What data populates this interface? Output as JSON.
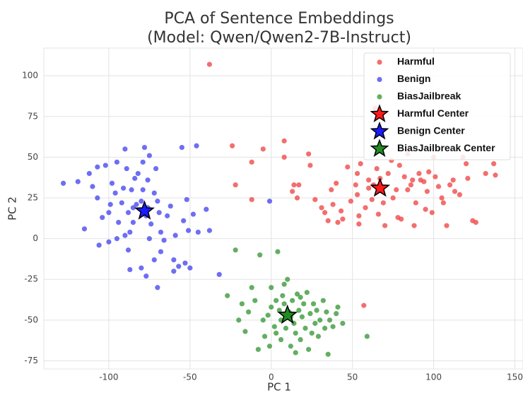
{
  "chart_data": {
    "type": "scatter",
    "title": [
      "PCA of Sentence Embeddings",
      "(Model: Qwen/Qwen2-7B-Instruct)"
    ],
    "xlabel": "PC 1",
    "ylabel": "PC 2",
    "xlim": [
      -140,
      155
    ],
    "ylim": [
      -80,
      117
    ],
    "xticks": [
      -100,
      -50,
      0,
      50,
      100,
      150
    ],
    "yticks": [
      -75,
      -50,
      -25,
      0,
      25,
      50,
      75,
      100
    ],
    "grid": true,
    "legend": "upper right",
    "series": [
      {
        "name": "Harmful",
        "color": "#f04a4a",
        "marker": "circle",
        "x": [
          -38,
          -24,
          -22,
          -12,
          -12,
          -5,
          8,
          8,
          13,
          14,
          16,
          17,
          23,
          24,
          27,
          31,
          33,
          35,
          38,
          37,
          40,
          41,
          43,
          44,
          47,
          49,
          52,
          53,
          53,
          54,
          54,
          55,
          58,
          60,
          60,
          62,
          64,
          63,
          65,
          66,
          67,
          69,
          70,
          72,
          74,
          75,
          77,
          78,
          80,
          79,
          82,
          84,
          84,
          86,
          87,
          88,
          89,
          91,
          92,
          94,
          95,
          96,
          97,
          99,
          100,
          101,
          103,
          105,
          106,
          108,
          110,
          112,
          113,
          116,
          118,
          120,
          121,
          124,
          126,
          132,
          137,
          138,
          57
        ],
        "y": [
          107,
          57,
          33,
          47,
          24,
          55,
          50,
          60,
          29,
          33,
          25,
          33,
          52,
          45,
          24,
          19,
          16,
          11,
          21,
          30,
          34,
          10,
          17,
          12,
          44,
          23,
          33,
          27,
          40,
          14,
          9,
          46,
          19,
          36,
          31,
          24,
          80,
          33,
          43,
          15,
          37,
          22,
          8,
          40,
          48,
          25,
          30,
          13,
          12,
          45,
          38,
          30,
          52,
          33,
          36,
          8,
          22,
          40,
          36,
          35,
          18,
          29,
          41,
          16,
          50,
          38,
          32,
          25,
          22,
          8,
          33,
          36,
          29,
          27,
          50,
          46,
          37,
          11,
          10,
          40,
          46,
          39,
          -41
        ]
      },
      {
        "name": "Benign",
        "color": "#4a4af0",
        "marker": "circle",
        "x": [
          -128,
          -119,
          -112,
          -110,
          -107,
          -107,
          -104,
          -100,
          -99,
          -98,
          -96,
          -95,
          -94,
          -92,
          -91,
          -90,
          -89,
          -88,
          -87,
          -86,
          -85,
          -85,
          -84,
          -83,
          -82,
          -80,
          -79,
          -79,
          -78,
          -77,
          -76,
          -76,
          -75,
          -74,
          -72,
          -71,
          -70,
          -69,
          -68,
          -68,
          -66,
          -64,
          -62,
          -60,
          -59,
          -57,
          -55,
          -54,
          -52,
          -51,
          -50,
          -48,
          -46,
          -45,
          -40,
          -38,
          -32,
          -115,
          -106,
          -88,
          -87,
          -80,
          -77,
          -72,
          -70,
          -102,
          -95,
          -90,
          -1,
          -75,
          -60,
          -53,
          -100
        ],
        "y": [
          34,
          35,
          40,
          32,
          44,
          25,
          13,
          16,
          21,
          34,
          28,
          47,
          10,
          22,
          31,
          55,
          43,
          16,
          4,
          30,
          19,
          10,
          37,
          21,
          40,
          23,
          47,
          30,
          56,
          14,
          36,
          19,
          51,
          9,
          28,
          43,
          23,
          16,
          4,
          -8,
          -1,
          14,
          20,
          -13,
          2,
          -17,
          56,
          11,
          24,
          5,
          -18,
          15,
          57,
          4,
          18,
          5,
          -22,
          6,
          -4,
          -7,
          -19,
          -18,
          -23,
          -13,
          -30,
          45,
          0,
          2,
          23,
          0,
          -20,
          -15,
          -2
        ]
      },
      {
        "name": "BiasJailbreak",
        "color": "#3c9a3c",
        "marker": "circle",
        "x": [
          -22,
          -27,
          -20,
          -18,
          -14,
          -12,
          -10,
          -7,
          -5,
          -4,
          -2,
          0,
          2,
          3,
          4,
          5,
          6,
          7,
          8,
          9,
          10,
          11,
          12,
          13,
          14,
          15,
          16,
          17,
          18,
          19,
          20,
          21,
          22,
          23,
          24,
          25,
          26,
          27,
          28,
          29,
          30,
          32,
          33,
          34,
          35,
          36,
          38,
          40,
          41,
          44,
          -8,
          -1,
          15,
          -16,
          8,
          3,
          12,
          18,
          6,
          0,
          59
        ],
        "y": [
          -7,
          -35,
          -50,
          -40,
          -45,
          -30,
          -38,
          -10,
          -50,
          -60,
          -47,
          -42,
          -54,
          -38,
          -8,
          -44,
          -62,
          -35,
          -28,
          -55,
          -25,
          -45,
          -66,
          -38,
          -52,
          -58,
          -34,
          -44,
          -62,
          -48,
          -40,
          -55,
          -33,
          -68,
          -46,
          -58,
          -40,
          -52,
          -44,
          -60,
          -50,
          -38,
          -55,
          -45,
          -71,
          -50,
          -54,
          -46,
          -42,
          -52,
          -68,
          -66,
          -70,
          -57,
          -40,
          -58,
          -48,
          -36,
          -50,
          -30,
          -60
        ]
      },
      {
        "name": "Harmful Center",
        "color": "#ff1a1a",
        "marker": "star",
        "x": [
          67
        ],
        "y": [
          31
        ]
      },
      {
        "name": "Benign Center",
        "color": "#1a1aff",
        "marker": "star",
        "x": [
          -78
        ],
        "y": [
          17
        ]
      },
      {
        "name": "BiasJailbreak Center",
        "color": "#228b22",
        "marker": "star",
        "x": [
          10
        ],
        "y": [
          -47
        ]
      }
    ]
  }
}
